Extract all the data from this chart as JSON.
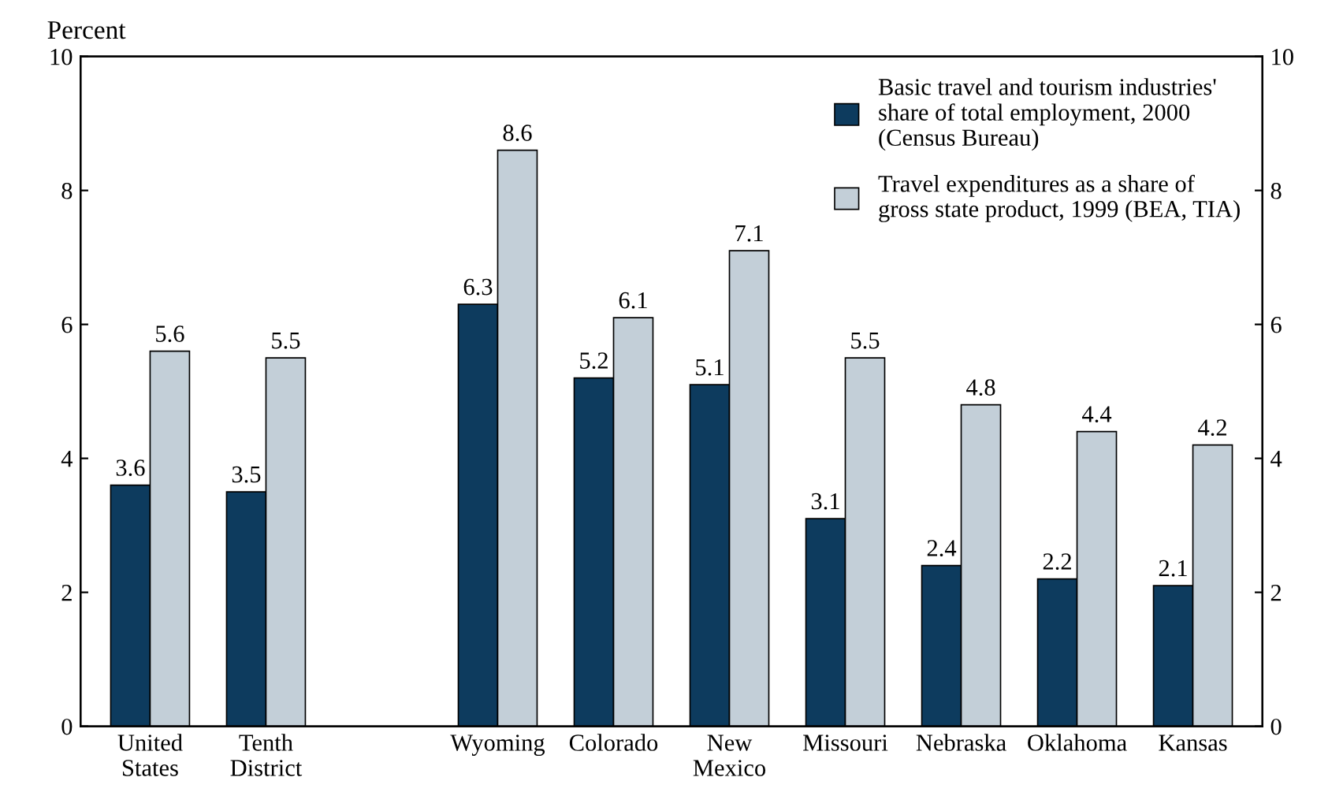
{
  "chart_data": {
    "type": "bar",
    "ylabel": "Percent",
    "categories": [
      "United\nStates",
      "Tenth\nDistrict",
      null,
      "Wyoming",
      "Colorado",
      "New\nMexico",
      "Missouri",
      "Nebraska",
      "Oklahoma",
      "Kansas"
    ],
    "series": [
      {
        "name": "Basic travel and tourism industries'\nshare of total employment, 2000\n(Census Bureau)",
        "color": "#0d3b5e",
        "values": [
          3.6,
          3.5,
          null,
          6.3,
          5.2,
          5.1,
          3.1,
          2.4,
          2.2,
          2.1
        ]
      },
      {
        "name": "Travel expenditures as a share of\ngross state product, 1999 (BEA, TIA)",
        "color": "#c3cfd8",
        "values": [
          5.6,
          5.5,
          null,
          8.6,
          6.1,
          7.1,
          5.5,
          4.8,
          4.4,
          4.2
        ]
      }
    ],
    "ylim": [
      0,
      10
    ],
    "yticks": [
      0,
      2,
      4,
      6,
      8,
      10
    ],
    "y2lim": [
      0,
      10
    ],
    "y2ticks": [
      0,
      2,
      4,
      6,
      8,
      10
    ],
    "data_labels": true,
    "legend": "top right",
    "grid": false
  }
}
